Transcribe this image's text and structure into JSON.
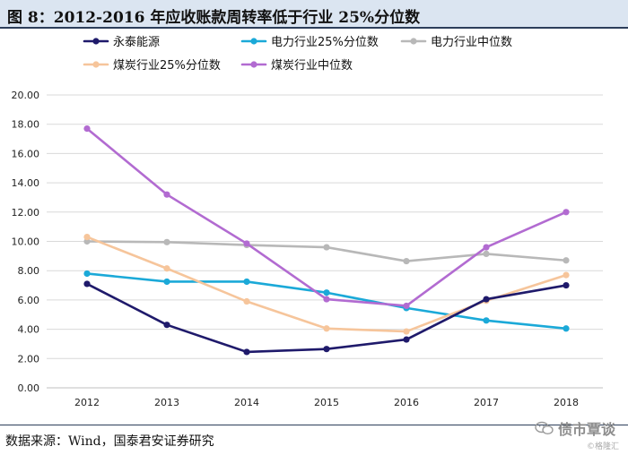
{
  "figure": {
    "title": "图 8：2012-2016 年应收账款周转率低于行业 25%分位数",
    "source": "数据来源：Wind，国泰君安证券研究"
  },
  "watermark": {
    "icon": "wechat-icon",
    "main": "债市覃谈",
    "sub": "©格隆汇"
  },
  "chart_data": {
    "type": "line",
    "categories": [
      "2012",
      "2013",
      "2014",
      "2015",
      "2016",
      "2017",
      "2018"
    ],
    "ylim": [
      0,
      20
    ],
    "yticks": [
      "0.00",
      "2.00",
      "4.00",
      "6.00",
      "8.00",
      "10.00",
      "12.00",
      "14.00",
      "16.00",
      "18.00",
      "20.00"
    ],
    "grid": true,
    "legend_position": "top",
    "series": [
      {
        "name": "永泰能源",
        "color": "#1f1a6b",
        "values": [
          7.1,
          4.3,
          2.45,
          2.65,
          3.3,
          6.05,
          7.0
        ]
      },
      {
        "name": "电力行业25%分位数",
        "color": "#1ba9d8",
        "values": [
          7.8,
          7.25,
          7.25,
          6.5,
          5.45,
          4.6,
          4.05
        ]
      },
      {
        "name": "电力行业中位数",
        "color": "#b8b8b8",
        "values": [
          10.0,
          9.95,
          9.75,
          9.6,
          8.65,
          9.15,
          8.7
        ]
      },
      {
        "name": "煤炭行业25%分位数",
        "color": "#f6c59b",
        "values": [
          10.3,
          8.15,
          5.9,
          4.05,
          3.85,
          5.95,
          7.7
        ]
      },
      {
        "name": "煤炭行业中位数",
        "color": "#b26bd1",
        "values": [
          17.7,
          13.2,
          9.85,
          6.05,
          5.6,
          9.6,
          12.0
        ]
      }
    ]
  }
}
